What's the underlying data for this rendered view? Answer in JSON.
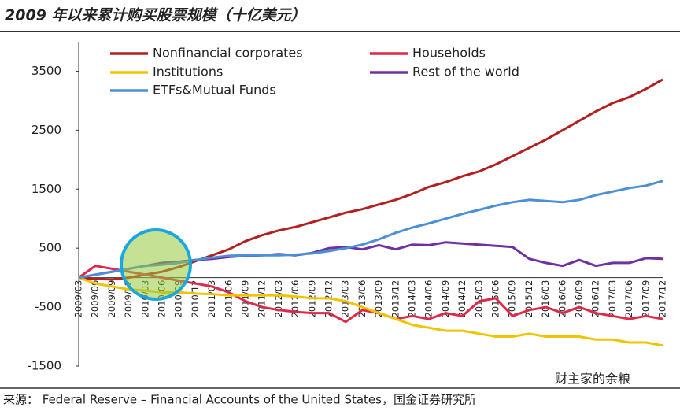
{
  "chart_data": {
    "type": "line",
    "title": "2009 年以来累计购买股票规模（十亿美元）",
    "source": "来源： Federal Reserve – Financial Accounts of the United States，国金证券研究所",
    "watermark": "财主家的余粮",
    "categories": [
      "2009/03",
      "2009/06",
      "2009/09",
      "2009/12",
      "2010/03",
      "2010/06",
      "2010/09",
      "2010/12",
      "2011/03",
      "2011/06",
      "2011/09",
      "2011/12",
      "2012/03",
      "2012/06",
      "2012/09",
      "2012/12",
      "2013/03",
      "2013/06",
      "2013/09",
      "2013/12",
      "2014/03",
      "2014/06",
      "2014/09",
      "2014/12",
      "2015/03",
      "2015/06",
      "2015/09",
      "2015/12",
      "2016/03",
      "2016/06",
      "2016/09",
      "2016/12",
      "2017/03",
      "2017/06",
      "2017/09",
      "2017/12"
    ],
    "series": [
      {
        "name": "Nonfinancial corporates",
        "color": "#b3201f",
        "values": [
          0,
          -20,
          -30,
          0,
          50,
          100,
          180,
          280,
          380,
          480,
          620,
          720,
          800,
          860,
          940,
          1020,
          1100,
          1160,
          1240,
          1320,
          1420,
          1540,
          1620,
          1720,
          1800,
          1920,
          2060,
          2200,
          2340,
          2500,
          2660,
          2820,
          2960,
          3060,
          3200,
          3360
        ]
      },
      {
        "name": "Households",
        "color": "#e0294a",
        "values": [
          0,
          200,
          150,
          100,
          50,
          0,
          -50,
          -100,
          -150,
          -250,
          -400,
          -500,
          -550,
          -580,
          -600,
          -600,
          -750,
          -550,
          -600,
          -700,
          -650,
          -700,
          -600,
          -650,
          -400,
          -350,
          -650,
          -550,
          -500,
          -600,
          -500,
          -600,
          -650,
          -700,
          -650,
          -700
        ]
      },
      {
        "name": "Institutions",
        "color": "#f0c400",
        "values": [
          0,
          -100,
          -150,
          -200,
          -220,
          -250,
          -250,
          -270,
          -280,
          -300,
          -300,
          -300,
          -300,
          -320,
          -350,
          -350,
          -400,
          -500,
          -600,
          -700,
          -800,
          -850,
          -900,
          -900,
          -950,
          -1000,
          -1000,
          -950,
          -1000,
          -1000,
          -1000,
          -1050,
          -1050,
          -1100,
          -1100,
          -1150
        ]
      },
      {
        "name": "Rest of the world",
        "color": "#7030a0",
        "values": [
          0,
          50,
          100,
          150,
          200,
          250,
          270,
          300,
          320,
          350,
          370,
          380,
          400,
          380,
          420,
          500,
          520,
          480,
          550,
          480,
          560,
          550,
          600,
          580,
          560,
          540,
          520,
          320,
          250,
          200,
          300,
          200,
          250,
          250,
          330,
          320
        ]
      },
      {
        "name": "ETFs&Mutual Funds",
        "color": "#4a8fd8",
        "values": [
          0,
          50,
          100,
          150,
          200,
          220,
          250,
          300,
          340,
          370,
          380,
          380,
          380,
          390,
          410,
          450,
          500,
          560,
          650,
          760,
          850,
          920,
          1000,
          1080,
          1150,
          1220,
          1280,
          1320,
          1300,
          1280,
          1320,
          1400,
          1460,
          1520,
          1560,
          1640
        ]
      }
    ],
    "ylim": [
      -1500,
      4000
    ],
    "yticks": [
      3500,
      2500,
      1500,
      500,
      -500,
      -1500
    ],
    "grid": false
  }
}
